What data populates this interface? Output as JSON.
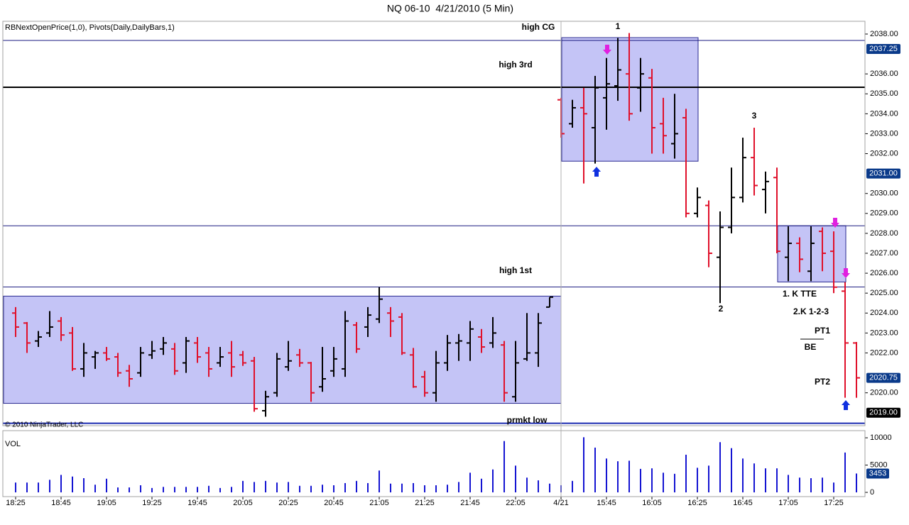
{
  "chart_data": [
    {
      "type": "ohlc",
      "title": "NQ 06-10  4/21/2010 (5 Min)",
      "indicators": "RBNextOpenPrice(1,0), Pivots(Daily,DailyBars,1)",
      "copyright": "© 2010 NinjaTrader, LLC",
      "open": [
        2024.0,
        2023.5,
        2022.6,
        2023.0,
        2023.6,
        2023.0,
        2021.2,
        2021.8,
        2022.0,
        2021.8,
        2021.1,
        2021.0,
        2021.9,
        2022.2,
        2022.2,
        2021.5,
        2022.5,
        2022.0,
        2021.5,
        2022.0,
        2021.9,
        2021.6,
        2019.1,
        2020.0,
        2021.3,
        2021.9,
        2021.5,
        2020.3,
        2021.1,
        2021.2,
        2023.4,
        2023.3,
        2023.7,
        2024.0,
        2023.8,
        2021.9,
        2020.8,
        2020.0,
        2021.5,
        2022.5,
        2022.5,
        2022.8,
        2022.5,
        2022.4,
        2019.8,
        2021.7,
        2022.0,
        2024.3,
        2034.7,
        2033.5,
        2034.3,
        2033.3,
        2034.8,
        2035.4,
        2036.0,
        2035.3,
        2035.8,
        2033.5,
        2032.5,
        2033.8,
        2029.0,
        2029.4,
        2026.8,
        2028.3,
        2029.8,
        2031.8,
        2030.2,
        2030.8,
        2026.8,
        2027.5,
        2026.1,
        2028.1,
        2027.1,
        2025.1,
        2022.5
      ],
      "high": [
        2024.3,
        2023.55,
        2023.1,
        2024.1,
        2023.8,
        2023.3,
        2022.5,
        2022.1,
        2022.3,
        2022.0,
        2021.4,
        2022.3,
        2022.6,
        2022.8,
        2022.5,
        2022.8,
        2022.8,
        2022.3,
        2022.3,
        2022.6,
        2022.1,
        2021.8,
        2020.1,
        2022.0,
        2022.6,
        2022.2,
        2021.55,
        2022.3,
        2022.3,
        2024.1,
        2023.55,
        2024.3,
        2025.3,
        2024.3,
        2024.0,
        2022.25,
        2021.1,
        2022.1,
        2022.9,
        2022.95,
        2023.6,
        2023.2,
        2023.8,
        2022.6,
        2022.6,
        2024.0,
        2024.0,
        2024.8,
        2034.8,
        2034.7,
        2035.3,
        2035.9,
        2036.8,
        2037.8,
        2038.05,
        2036.8,
        2036.25,
        2034.8,
        2035.0,
        2034.25,
        2030.3,
        2029.65,
        2029.1,
        2031.3,
        2032.8,
        2033.3,
        2031.1,
        2031.3,
        2028.35,
        2027.8,
        2028.35,
        2028.3,
        2028.1,
        2025.55,
        2022.55
      ],
      "low": [
        2022.8,
        2022.0,
        2022.3,
        2022.8,
        2022.6,
        2021.1,
        2020.8,
        2021.2,
        2021.6,
        2020.8,
        2020.3,
        2020.8,
        2021.7,
        2021.9,
        2020.9,
        2021.0,
        2021.5,
        2020.8,
        2021.3,
        2020.8,
        2021.35,
        2019.05,
        2018.8,
        2019.8,
        2021.1,
        2021.3,
        2019.55,
        2020.05,
        2020.8,
        2020.8,
        2022.0,
        2022.8,
        2023.5,
        2022.8,
        2021.9,
        2020.25,
        2019.8,
        2019.55,
        2021.1,
        2021.6,
        2021.6,
        2022.0,
        2022.25,
        2019.55,
        2019.55,
        2021.6,
        2021.3,
        2024.3,
        2032.8,
        2033.3,
        2030.5,
        2031.5,
        2033.2,
        2034.65,
        2033.65,
        2034.1,
        2032.0,
        2032.0,
        2031.75,
        2028.8,
        2028.8,
        2026.3,
        2024.5,
        2028.0,
        2029.55,
        2029.9,
        2029.0,
        2027.0,
        2025.6,
        2026.05,
        2025.6,
        2026.1,
        2025.0,
        2019.75,
        2019.75
      ],
      "close": [
        2023.3,
        2022.5,
        2022.8,
        2023.3,
        2022.9,
        2021.2,
        2022.0,
        2022.0,
        2021.7,
        2021.0,
        2020.7,
        2022.0,
        2022.1,
        2022.5,
        2021.1,
        2022.6,
        2021.8,
        2021.2,
        2021.8,
        2021.3,
        2021.5,
        2019.2,
        2019.8,
        2021.7,
        2021.6,
        2021.5,
        2020.0,
        2020.7,
        2021.7,
        2023.6,
        2022.2,
        2023.9,
        2024.7,
        2023.6,
        2022.0,
        2020.3,
        2020.0,
        2021.5,
        2022.5,
        2022.6,
        2023.2,
        2022.3,
        2023.0,
        2020.0,
        2021.5,
        2022.0,
        2023.5,
        2024.8,
        2033.0,
        2034.3,
        2034.0,
        2035.3,
        2035.5,
        2036.2,
        2034.0,
        2036.0,
        2033.3,
        2032.9,
        2033.0,
        2029.0,
        2029.8,
        2027.0,
        2028.3,
        2029.8,
        2031.8,
        2030.4,
        2030.6,
        2027.1,
        2027.5,
        2026.7,
        2027.5,
        2027.0,
        2025.3,
        2022.5,
        2020.75
      ],
      "up_color": "#000000",
      "down_color": "#e0102a",
      "ylim": [
        2018.35,
        2038.64
      ],
      "yticks": [
        {
          "value": 2020,
          "label": "2020.00"
        },
        {
          "value": 2022,
          "label": "2022.00"
        },
        {
          "value": 2023,
          "label": "2023.00"
        },
        {
          "value": 2024,
          "label": "2024.00"
        },
        {
          "value": 2025,
          "label": "2025.00"
        },
        {
          "value": 2026,
          "label": "2026.00"
        },
        {
          "value": 2027,
          "label": "2027.00"
        },
        {
          "value": 2028,
          "label": "2028.00"
        },
        {
          "value": 2029,
          "label": "2029.00"
        },
        {
          "value": 2030,
          "label": "2030.00"
        },
        {
          "value": 2032,
          "label": "2032.00"
        },
        {
          "value": 2033,
          "label": "2033.00"
        },
        {
          "value": 2034,
          "label": "2034.00"
        },
        {
          "value": 2035,
          "label": "2035.00"
        },
        {
          "value": 2036,
          "label": "2036.00"
        },
        {
          "value": 2038,
          "label": "2038.00"
        }
      ],
      "levels": [
        {
          "name": "high CG",
          "value": 2037.68,
          "color": "#1a1a80"
        },
        {
          "name": "high 3rd",
          "value": 2035.33,
          "color": "#000000",
          "style": "thick"
        },
        {
          "value": 2028.38,
          "color": "#1a1a80"
        },
        {
          "name": "high 1st",
          "value": 2025.31,
          "color": "#1a1a80"
        },
        {
          "name": "prmkt low",
          "value": 2018.47,
          "color": "#1a2ab0",
          "style": "thick"
        }
      ],
      "zones": [
        {
          "low": 2019.47,
          "high": 2024.85
        },
        {
          "low": 2031.62,
          "high": 2037.82
        },
        {
          "low": 2025.56,
          "high": 2028.38
        }
      ],
      "zone_color": "#c4c4f6",
      "badges": [
        2037.25,
        {
          "value": 2031,
          "label": "2031.00"
        },
        {
          "value": 2019,
          "label": "2019.00"
        }
      ],
      "annotations": [
        "1",
        "2",
        "3",
        "1. K TTE",
        "2.K 1-2-3",
        "PT1",
        "BE",
        "PT2"
      ]
    },
    {
      "type": "bar",
      "title": "VOL",
      "categories": [
        "18:25",
        null,
        null,
        null,
        "18:45",
        null,
        null,
        null,
        "19:05",
        null,
        null,
        null,
        "19:25",
        null,
        null,
        null,
        "19:45",
        null,
        null,
        null,
        "20:05",
        null,
        null,
        null,
        "20:25",
        null,
        null,
        null,
        "20:45",
        null,
        null,
        null,
        "21:05",
        null,
        null,
        null,
        "21:25",
        null,
        null,
        null,
        "21:45",
        null,
        null,
        null,
        "22:05",
        null,
        null,
        null,
        "4/21",
        null,
        null,
        null,
        "15:45",
        null,
        null,
        null,
        "16:05",
        null,
        null,
        null,
        "16:25",
        null,
        null,
        null,
        "16:45",
        null,
        null,
        null,
        "17:05",
        null,
        null,
        null,
        "17:25",
        null,
        null
      ],
      "values": [
        1800,
        1800,
        1800,
        2300,
        3200,
        2900,
        2600,
        1400,
        2500,
        900,
        900,
        1300,
        800,
        1000,
        1000,
        1000,
        1000,
        1200,
        800,
        1000,
        2100,
        1900,
        2100,
        1800,
        1900,
        1200,
        1200,
        1400,
        1300,
        1700,
        2100,
        1700,
        4000,
        1600,
        1600,
        1700,
        1300,
        1300,
        1400,
        1900,
        3600,
        2500,
        4200,
        9400,
        4900,
        2700,
        2200,
        1600,
        1300,
        2100,
        10100,
        8200,
        6200,
        5700,
        5800,
        4300,
        4400,
        3600,
        3400,
        6900,
        4500,
        4900,
        9200,
        8100,
        6200,
        5300,
        4400,
        4400,
        3200,
        2700,
        2600,
        2700,
        1800,
        7300,
        3453
      ],
      "color": "#1414d2",
      "ylim": [
        -780,
        11310
      ],
      "yticks": [
        0,
        5000,
        10000
      ]
    }
  ]
}
